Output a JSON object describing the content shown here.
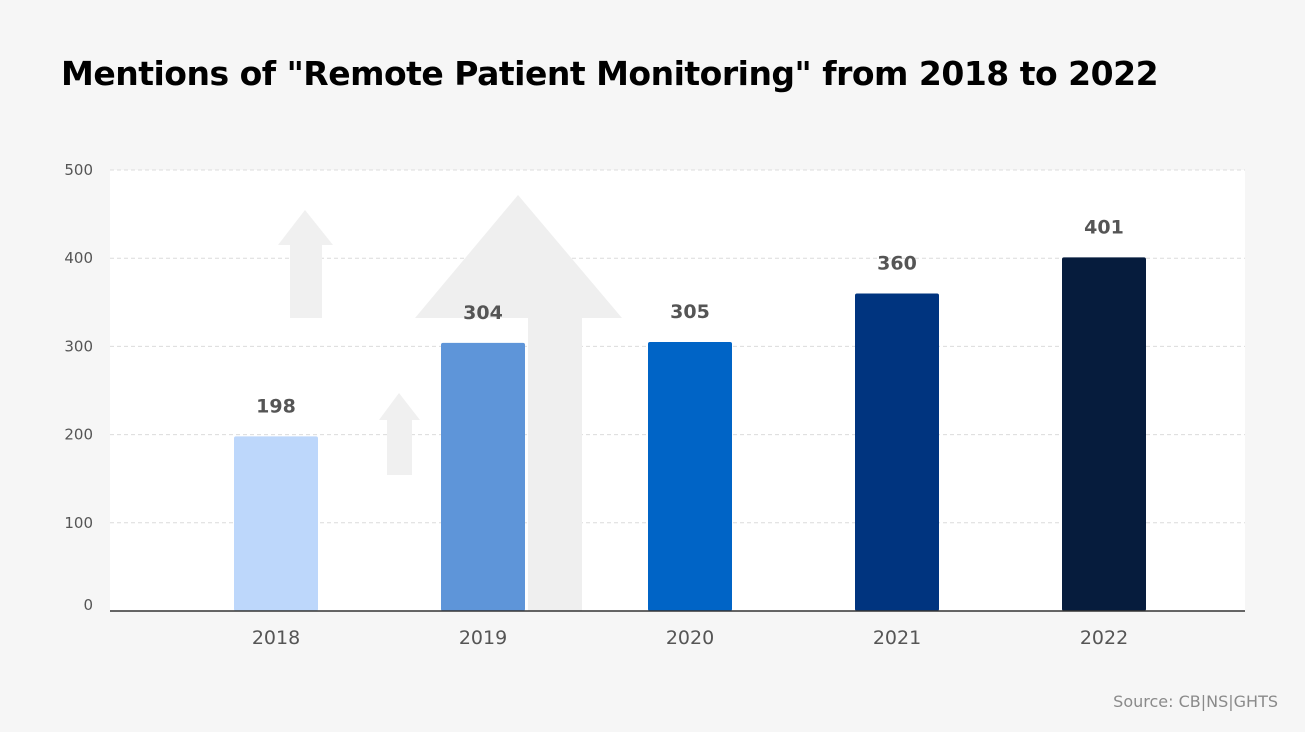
{
  "chart_data": {
    "type": "bar",
    "title": "Mentions of \"Remote Patient Monitoring\" from 2018 to 2022",
    "categories": [
      "2018",
      "2019",
      "2020",
      "2021",
      "2022"
    ],
    "values": [
      198,
      304,
      305,
      360,
      401
    ],
    "data_labels": [
      "198",
      "304",
      "305",
      "360",
      "401"
    ],
    "colors": [
      "#bdd7fb",
      "#5e95d9",
      "#0064c6",
      "#00347f",
      "#061c3d"
    ],
    "xlabel": "",
    "ylabel": "",
    "ylim": [
      0,
      500
    ],
    "yticks": [
      "0",
      "100",
      "200",
      "300",
      "400",
      "500"
    ],
    "grid": true,
    "legend": "none"
  },
  "source": "Source: CB|NS|GHTS"
}
